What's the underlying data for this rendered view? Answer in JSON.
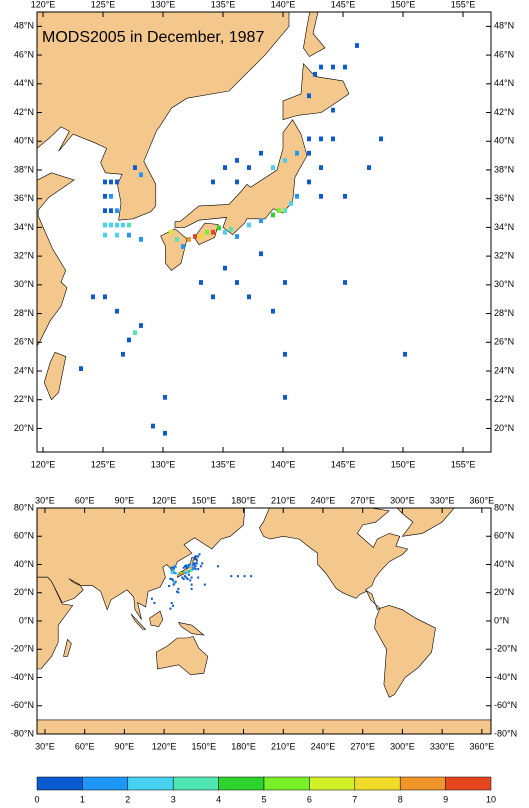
{
  "title": "MODS2005 in December, 1987",
  "top_map": {
    "lonlim": [
      119.5,
      157.33
    ],
    "latlim": [
      18.36,
      49.0
    ],
    "xticks": [
      {
        "value": 120,
        "label": "120°E"
      },
      {
        "value": 125,
        "label": "125°E"
      },
      {
        "value": 130,
        "label": "130°E"
      },
      {
        "value": 135,
        "label": "135°E"
      },
      {
        "value": 140,
        "label": "140°E"
      },
      {
        "value": 145,
        "label": "145°E"
      },
      {
        "value": 150,
        "label": "150°E"
      },
      {
        "value": 155,
        "label": "155°E"
      }
    ],
    "yticks": [
      {
        "value": 20,
        "label": "20°N"
      },
      {
        "value": 22,
        "label": "22°N"
      },
      {
        "value": 24,
        "label": "24°N"
      },
      {
        "value": 26,
        "label": "26°N"
      },
      {
        "value": 28,
        "label": "28°N"
      },
      {
        "value": 30,
        "label": "30°N"
      },
      {
        "value": 32,
        "label": "32°N"
      },
      {
        "value": 34,
        "label": "34°N"
      },
      {
        "value": 36,
        "label": "36°N"
      },
      {
        "value": 38,
        "label": "38°N"
      },
      {
        "value": 40,
        "label": "40°N"
      },
      {
        "value": 42,
        "label": "42°N"
      },
      {
        "value": 44,
        "label": "44°N"
      },
      {
        "value": 46,
        "label": "46°N"
      },
      {
        "value": 48,
        "label": "48°N"
      }
    ]
  },
  "bottom_map": {
    "lonlim": [
      24,
      366.9
    ],
    "latlim": [
      -80,
      80
    ],
    "xticks": [
      {
        "value": 30,
        "label": "30°E"
      },
      {
        "value": 60,
        "label": "60°E"
      },
      {
        "value": 90,
        "label": "90°E"
      },
      {
        "value": 120,
        "label": "120°E"
      },
      {
        "value": 150,
        "label": "150°E"
      },
      {
        "value": 180,
        "label": "180°E"
      },
      {
        "value": 210,
        "label": "210°E"
      },
      {
        "value": 240,
        "label": "240°E"
      },
      {
        "value": 270,
        "label": "270°E"
      },
      {
        "value": 300,
        "label": "300°E"
      },
      {
        "value": 330,
        "label": "330°E"
      },
      {
        "value": 360,
        "label": "360°E"
      }
    ],
    "yticks": [
      {
        "value": -80,
        "label": "-80°N"
      },
      {
        "value": -60,
        "label": "-60°N"
      },
      {
        "value": -40,
        "label": "-40°N"
      },
      {
        "value": -20,
        "label": "-20°N"
      },
      {
        "value": 0,
        "label": "0°N"
      },
      {
        "value": 20,
        "label": "20°N"
      },
      {
        "value": 40,
        "label": "40°N"
      },
      {
        "value": 60,
        "label": "60°N"
      },
      {
        "value": 80,
        "label": "80°N"
      }
    ]
  },
  "colorbar": {
    "ticks": [
      0,
      1,
      2,
      3,
      4,
      5,
      6,
      7,
      8,
      9,
      10
    ],
    "colors": [
      "#0a5ad2",
      "#1e96f5",
      "#46d2f0",
      "#50e6b4",
      "#2dd22d",
      "#78f028",
      "#d2f028",
      "#f0dc28",
      "#f09628",
      "#e6461e"
    ]
  },
  "cells": [
    {
      "lon": 125,
      "lat": 37,
      "value": 0.6
    },
    {
      "lon": 125.5,
      "lat": 37,
      "value": 0.6
    },
    {
      "lon": 126,
      "lat": 37,
      "value": 0.6
    },
    {
      "lon": 125,
      "lat": 36,
      "value": 0.6
    },
    {
      "lon": 125.5,
      "lat": 36,
      "value": 1.2
    },
    {
      "lon": 125,
      "lat": 35,
      "value": 0.6
    },
    {
      "lon": 125.5,
      "lat": 35,
      "value": 0.6
    },
    {
      "lon": 126,
      "lat": 35,
      "value": 1.2
    },
    {
      "lon": 125,
      "lat": 34,
      "value": 2.5
    },
    {
      "lon": 125.5,
      "lat": 34,
      "value": 2.5
    },
    {
      "lon": 126,
      "lat": 34,
      "value": 2.5
    },
    {
      "lon": 126.5,
      "lat": 34,
      "value": 2.5
    },
    {
      "lon": 127,
      "lat": 34,
      "value": 3.5
    },
    {
      "lon": 125,
      "lat": 33.3,
      "value": 2.5
    },
    {
      "lon": 126,
      "lat": 33.3,
      "value": 2.5
    },
    {
      "lon": 127,
      "lat": 33.3,
      "value": 1.5
    },
    {
      "lon": 128,
      "lat": 33,
      "value": 1.5
    },
    {
      "lon": 127.5,
      "lat": 38,
      "value": 0.6
    },
    {
      "lon": 128,
      "lat": 37.5,
      "value": 1.5
    },
    {
      "lon": 130.5,
      "lat": 33.5,
      "value": 6.5
    },
    {
      "lon": 131,
      "lat": 33,
      "value": 3.5
    },
    {
      "lon": 131.5,
      "lat": 32.5,
      "value": 1.5
    },
    {
      "lon": 132,
      "lat": 33,
      "value": 8.5
    },
    {
      "lon": 132.5,
      "lat": 33.2,
      "value": 9.5
    },
    {
      "lon": 133,
      "lat": 33.2,
      "value": 7.5
    },
    {
      "lon": 133.5,
      "lat": 33.5,
      "value": 5.5
    },
    {
      "lon": 134,
      "lat": 33.5,
      "value": 9.2
    },
    {
      "lon": 134.5,
      "lat": 33.8,
      "value": 4.5
    },
    {
      "lon": 135,
      "lat": 33.5,
      "value": 2.5
    },
    {
      "lon": 135.5,
      "lat": 33.7,
      "value": 3.5
    },
    {
      "lon": 136,
      "lat": 33.2,
      "value": 1.5
    },
    {
      "lon": 137,
      "lat": 34,
      "value": 2.5
    },
    {
      "lon": 138,
      "lat": 34.3,
      "value": 1.5
    },
    {
      "lon": 139,
      "lat": 34.7,
      "value": 4.5
    },
    {
      "lon": 139.5,
      "lat": 35,
      "value": 5.5
    },
    {
      "lon": 140,
      "lat": 35,
      "value": 3
    },
    {
      "lon": 140.5,
      "lat": 35.5,
      "value": 2
    },
    {
      "lon": 141,
      "lat": 36,
      "value": 1.2
    },
    {
      "lon": 136,
      "lat": 37,
      "value": 0.5
    },
    {
      "lon": 137,
      "lat": 38,
      "value": 0.5
    },
    {
      "lon": 138,
      "lat": 39,
      "value": 0.5
    },
    {
      "lon": 135,
      "lat": 38,
      "value": 0.6
    },
    {
      "lon": 136,
      "lat": 38.5,
      "value": 0.6
    },
    {
      "lon": 134,
      "lat": 37,
      "value": 0.6
    },
    {
      "lon": 139,
      "lat": 38,
      "value": 2.2
    },
    {
      "lon": 140,
      "lat": 38.5,
      "value": 2.2
    },
    {
      "lon": 141,
      "lat": 39,
      "value": 1.5
    },
    {
      "lon": 142,
      "lat": 40,
      "value": 0.8
    },
    {
      "lon": 143,
      "lat": 40,
      "value": 0.5
    },
    {
      "lon": 144,
      "lat": 40,
      "value": 0.5
    },
    {
      "lon": 142,
      "lat": 39,
      "value": 0.5
    },
    {
      "lon": 143,
      "lat": 38,
      "value": 0.5
    },
    {
      "lon": 142,
      "lat": 37,
      "value": 0.8
    },
    {
      "lon": 143,
      "lat": 36,
      "value": 0.5
    },
    {
      "lon": 142.5,
      "lat": 44.5,
      "value": 0.6
    },
    {
      "lon": 143,
      "lat": 45,
      "value": 0.6
    },
    {
      "lon": 144,
      "lat": 45,
      "value": 0.6
    },
    {
      "lon": 145,
      "lat": 45,
      "value": 0.6
    },
    {
      "lon": 142,
      "lat": 43,
      "value": 0.5
    },
    {
      "lon": 144,
      "lat": 42,
      "value": 0.6
    },
    {
      "lon": 133,
      "lat": 30,
      "value": 0.6
    },
    {
      "lon": 134,
      "lat": 29,
      "value": 0.5
    },
    {
      "lon": 135,
      "lat": 31,
      "value": 0.5
    },
    {
      "lon": 136,
      "lat": 30,
      "value": 0.5
    },
    {
      "lon": 137,
      "lat": 29,
      "value": 0.5
    },
    {
      "lon": 138,
      "lat": 32,
      "value": 0.6
    },
    {
      "lon": 140,
      "lat": 30,
      "value": 0.5
    },
    {
      "lon": 140,
      "lat": 25,
      "value": 0.6
    },
    {
      "lon": 140,
      "lat": 22,
      "value": 0.5
    },
    {
      "lon": 139,
      "lat": 28,
      "value": 0.6
    },
    {
      "lon": 145,
      "lat": 30,
      "value": 0.5
    },
    {
      "lon": 145,
      "lat": 36,
      "value": 0.5
    },
    {
      "lon": 146,
      "lat": 46.5,
      "value": 0.5
    },
    {
      "lon": 148,
      "lat": 40,
      "value": 0.5
    },
    {
      "lon": 147,
      "lat": 38,
      "value": 0.5
    },
    {
      "lon": 127,
      "lat": 26,
      "value": 0.6
    },
    {
      "lon": 127.5,
      "lat": 26.5,
      "value": 3.5
    },
    {
      "lon": 128,
      "lat": 27,
      "value": 0.6
    },
    {
      "lon": 126,
      "lat": 28,
      "value": 0.6
    },
    {
      "lon": 126.5,
      "lat": 25,
      "value": 0.6
    },
    {
      "lon": 125,
      "lat": 29,
      "value": 0.6
    },
    {
      "lon": 124,
      "lat": 29,
      "value": 0.5
    },
    {
      "lon": 123,
      "lat": 24,
      "value": 0.5
    },
    {
      "lon": 130,
      "lat": 22,
      "value": 0.6
    },
    {
      "lon": 129,
      "lat": 20,
      "value": 0.5
    },
    {
      "lon": 130,
      "lat": 19.5,
      "value": 0.5
    },
    {
      "lon": 126,
      "lat": 10,
      "value": 0.6
    },
    {
      "lon": 125,
      "lat": 12,
      "value": 0.6
    },
    {
      "lon": 124,
      "lat": 8,
      "value": 0.6
    },
    {
      "lon": 110,
      "lat": 15,
      "value": 0.6
    },
    {
      "lon": 112,
      "lat": 12,
      "value": 0.6
    },
    {
      "lon": 170,
      "lat": 31,
      "value": 0.6
    },
    {
      "lon": 175,
      "lat": 31,
      "value": 0.6
    },
    {
      "lon": 180,
      "lat": 31,
      "value": 0.6
    },
    {
      "lon": 185,
      "lat": 31,
      "value": 0.6
    },
    {
      "lon": 160,
      "lat": 38,
      "value": 0.6
    },
    {
      "lon": 150,
      "lat": 25,
      "value": 0.5
    }
  ]
}
